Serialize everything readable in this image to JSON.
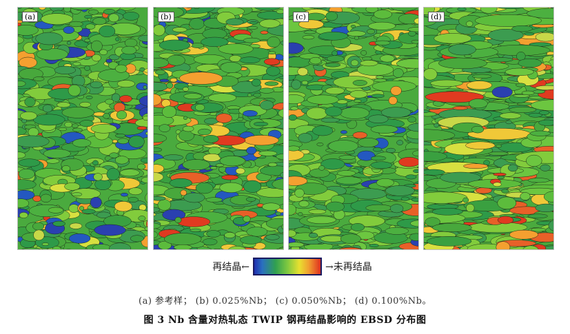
{
  "panels": [
    {
      "id": "a",
      "label": "(a)"
    },
    {
      "id": "b",
      "label": "(b)"
    },
    {
      "id": "c",
      "label": "(c)"
    },
    {
      "id": "d",
      "label": "(d)"
    }
  ],
  "legend": {
    "left_label": "再结晶←",
    "right_label": "→未再结晶",
    "gradient_colors": [
      "#2030b0",
      "#2a70c0",
      "#30a050",
      "#7ec840",
      "#e8e030",
      "#f0a030",
      "#e03020"
    ]
  },
  "caption": {
    "subtitle": "(a) 参考样；  (b) 0.025%Nb；  (c) 0.050%Nb；  (d) 0.100%Nb。",
    "title": "图 3   Nb 含量对热轧态 TWIP 钢再结晶影响的 EBSD 分布图"
  }
}
